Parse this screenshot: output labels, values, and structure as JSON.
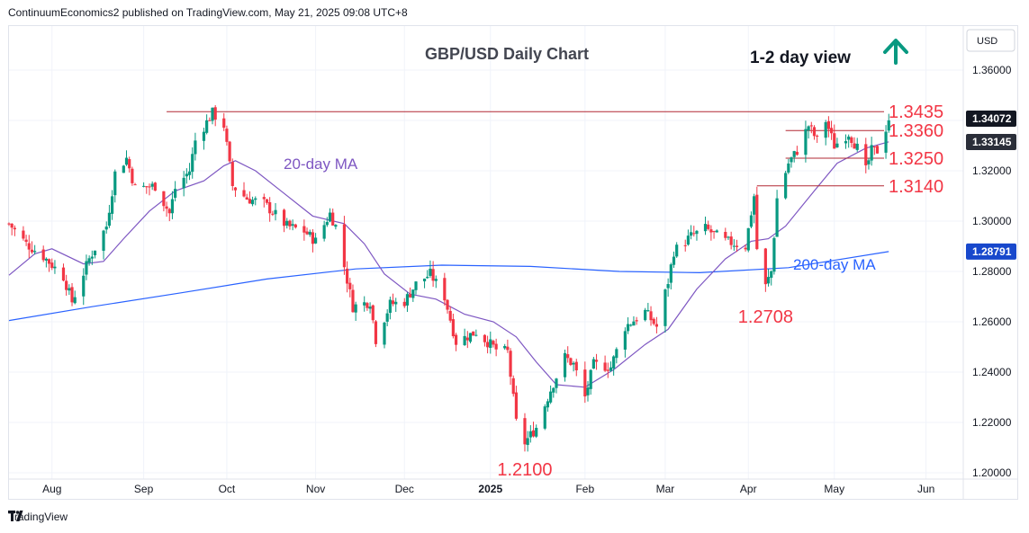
{
  "header": {
    "publisher_line": "ContinuumEconomics2 published on TradingView.com, May 21, 2025 09:08 UTC+8"
  },
  "footer": {
    "brand": "TradingView",
    "logo_icon": "tradingview-logo-icon"
  },
  "colors": {
    "up": "#089981",
    "down": "#f23645",
    "ma20": "#7e57c2",
    "ma200": "#2962ff",
    "level_line": "#b22833",
    "annotation_red": "#f23645",
    "price_label_bg": "#131722",
    "ma200_label_bg": "#1848cc",
    "arrow": "#089981"
  },
  "chart_data": {
    "type": "candlestick",
    "title": "GBP/USD Daily Chart",
    "subtitle": "1-2 day view",
    "currency": "USD",
    "y_ticks": [
      "1.36000",
      "1.34000",
      "1.32000",
      "1.30000",
      "1.28000",
      "1.26000",
      "1.24000",
      "1.22000",
      "1.20000"
    ],
    "ylim": [
      1.1975,
      1.3775
    ],
    "x_ticks": [
      "Aug",
      "Sep",
      "Oct",
      "Nov",
      "Dec",
      "2025",
      "Feb",
      "Mar",
      "Apr",
      "May",
      "Jun"
    ],
    "x_tick_dates": [
      "2024-08-01",
      "2024-09-02",
      "2024-10-01",
      "2024-11-01",
      "2024-12-02",
      "2025-01-01",
      "2025-02-03",
      "2025-03-03",
      "2025-04-01",
      "2025-05-01",
      "2025-06-02"
    ],
    "last_price_label": "1.34072",
    "ma20_label": "1.33145",
    "ma200_label": "1.28791",
    "indicators": [
      {
        "name": "20-day MA",
        "color": "#7e57c2"
      },
      {
        "name": "200-day MA",
        "color": "#2962ff"
      }
    ],
    "levels": [
      {
        "label": "1.3435",
        "value": 1.3435,
        "from": "2024-09-10"
      },
      {
        "label": "1.3360",
        "value": 1.336,
        "from": "2025-04-14"
      },
      {
        "label": "1.3250",
        "value": 1.325,
        "from": "2025-04-14"
      },
      {
        "label": "1.3140",
        "value": 1.314,
        "from": "2025-04-04"
      }
    ],
    "annotations": [
      {
        "text": "1.2100",
        "date": "2025-01-13",
        "value": 1.21
      },
      {
        "text": "1.2708",
        "date": "2025-04-07",
        "value": 1.2708
      }
    ],
    "price_path": [
      [
        "2024-07-17",
        1.299
      ],
      [
        "2024-07-23",
        1.291
      ],
      [
        "2024-07-29",
        1.286
      ],
      [
        "2024-08-05",
        1.278
      ],
      [
        "2024-08-08",
        1.268
      ],
      [
        "2024-08-14",
        1.285
      ],
      [
        "2024-08-20",
        1.298
      ],
      [
        "2024-08-23",
        1.319
      ],
      [
        "2024-08-27",
        1.325
      ],
      [
        "2024-08-30",
        1.313
      ],
      [
        "2024-09-06",
        1.314
      ],
      [
        "2024-09-11",
        1.303
      ],
      [
        "2024-09-13",
        1.313
      ],
      [
        "2024-09-18",
        1.32
      ],
      [
        "2024-09-20",
        1.332
      ],
      [
        "2024-09-26",
        1.343
      ],
      [
        "2024-09-30",
        1.338
      ],
      [
        "2024-10-03",
        1.314
      ],
      [
        "2024-10-08",
        1.309
      ],
      [
        "2024-10-14",
        1.307
      ],
      [
        "2024-10-22",
        1.298
      ],
      [
        "2024-10-28",
        1.296
      ],
      [
        "2024-11-01",
        1.292
      ],
      [
        "2024-11-06",
        1.303
      ],
      [
        "2024-11-08",
        1.298
      ],
      [
        "2024-11-14",
        1.266
      ],
      [
        "2024-11-20",
        1.268
      ],
      [
        "2024-11-22",
        1.253
      ],
      [
        "2024-11-27",
        1.267
      ],
      [
        "2024-12-02",
        1.268
      ],
      [
        "2024-12-06",
        1.275
      ],
      [
        "2024-12-11",
        1.279
      ],
      [
        "2024-12-16",
        1.27
      ],
      [
        "2024-12-20",
        1.252
      ],
      [
        "2024-12-27",
        1.256
      ],
      [
        "2025-01-03",
        1.249
      ],
      [
        "2025-01-07",
        1.248
      ],
      [
        "2025-01-10",
        1.22
      ],
      [
        "2025-01-13",
        1.212
      ],
      [
        "2025-01-17",
        1.218
      ],
      [
        "2025-01-22",
        1.233
      ],
      [
        "2025-01-27",
        1.246
      ],
      [
        "2025-01-30",
        1.243
      ],
      [
        "2025-02-03",
        1.23
      ],
      [
        "2025-02-06",
        1.243
      ],
      [
        "2025-02-12",
        1.242
      ],
      [
        "2025-02-17",
        1.258
      ],
      [
        "2025-02-24",
        1.264
      ],
      [
        "2025-02-28",
        1.258
      ],
      [
        "2025-03-04",
        1.276
      ],
      [
        "2025-03-06",
        1.288
      ],
      [
        "2025-03-12",
        1.294
      ],
      [
        "2025-03-17",
        1.297
      ],
      [
        "2025-03-24",
        1.292
      ],
      [
        "2025-03-31",
        1.29
      ],
      [
        "2025-04-03",
        1.31
      ],
      [
        "2025-04-04",
        1.289
      ],
      [
        "2025-04-07",
        1.274
      ],
      [
        "2025-04-09",
        1.28
      ],
      [
        "2025-04-11",
        1.309
      ],
      [
        "2025-04-15",
        1.323
      ],
      [
        "2025-04-18",
        1.328
      ],
      [
        "2025-04-22",
        1.338
      ],
      [
        "2025-04-25",
        1.332
      ],
      [
        "2025-04-28",
        1.34
      ],
      [
        "2025-05-01",
        1.33
      ],
      [
        "2025-05-06",
        1.335
      ],
      [
        "2025-05-09",
        1.329
      ],
      [
        "2025-05-12",
        1.32
      ],
      [
        "2025-05-14",
        1.328
      ],
      [
        "2025-05-16",
        1.328
      ],
      [
        "2025-05-19",
        1.337
      ],
      [
        "2025-05-20",
        1.3407
      ]
    ],
    "ma20_path": [
      [
        "2024-07-17",
        1.2785
      ],
      [
        "2024-07-26",
        1.287
      ],
      [
        "2024-08-01",
        1.289
      ],
      [
        "2024-08-12",
        1.283
      ],
      [
        "2024-08-19",
        1.284
      ],
      [
        "2024-08-26",
        1.293
      ],
      [
        "2024-09-04",
        1.304
      ],
      [
        "2024-09-13",
        1.312
      ],
      [
        "2024-09-23",
        1.316
      ],
      [
        "2024-09-30",
        1.322
      ],
      [
        "2024-10-04",
        1.324
      ],
      [
        "2024-10-11",
        1.32
      ],
      [
        "2024-10-21",
        1.311
      ],
      [
        "2024-10-31",
        1.302
      ],
      [
        "2024-11-11",
        1.299
      ],
      [
        "2024-11-18",
        1.291
      ],
      [
        "2024-11-25",
        1.279
      ],
      [
        "2024-12-04",
        1.271
      ],
      [
        "2024-12-13",
        1.269
      ],
      [
        "2024-12-23",
        1.263
      ],
      [
        "2025-01-02",
        1.26
      ],
      [
        "2025-01-10",
        1.254
      ],
      [
        "2025-01-17",
        1.244
      ],
      [
        "2025-01-24",
        1.235
      ],
      [
        "2025-02-03",
        1.234
      ],
      [
        "2025-02-13",
        1.241
      ],
      [
        "2025-02-24",
        1.251
      ],
      [
        "2025-03-04",
        1.257
      ],
      [
        "2025-03-14",
        1.273
      ],
      [
        "2025-03-24",
        1.285
      ],
      [
        "2025-04-02",
        1.292
      ],
      [
        "2025-04-08",
        1.293
      ],
      [
        "2025-04-14",
        1.298
      ],
      [
        "2025-04-24",
        1.312
      ],
      [
        "2025-05-02",
        1.323
      ],
      [
        "2025-05-12",
        1.329
      ],
      [
        "2025-05-20",
        1.3315
      ]
    ],
    "ma200_path": [
      [
        "2024-07-17",
        1.2605
      ],
      [
        "2024-08-15",
        1.266
      ],
      [
        "2024-09-15",
        1.2715
      ],
      [
        "2024-10-15",
        1.277
      ],
      [
        "2024-11-15",
        1.281
      ],
      [
        "2024-12-15",
        1.2825
      ],
      [
        "2025-01-15",
        1.282
      ],
      [
        "2025-02-15",
        1.28
      ],
      [
        "2025-03-15",
        1.2795
      ],
      [
        "2025-04-15",
        1.2815
      ],
      [
        "2025-05-20",
        1.2879
      ]
    ]
  }
}
